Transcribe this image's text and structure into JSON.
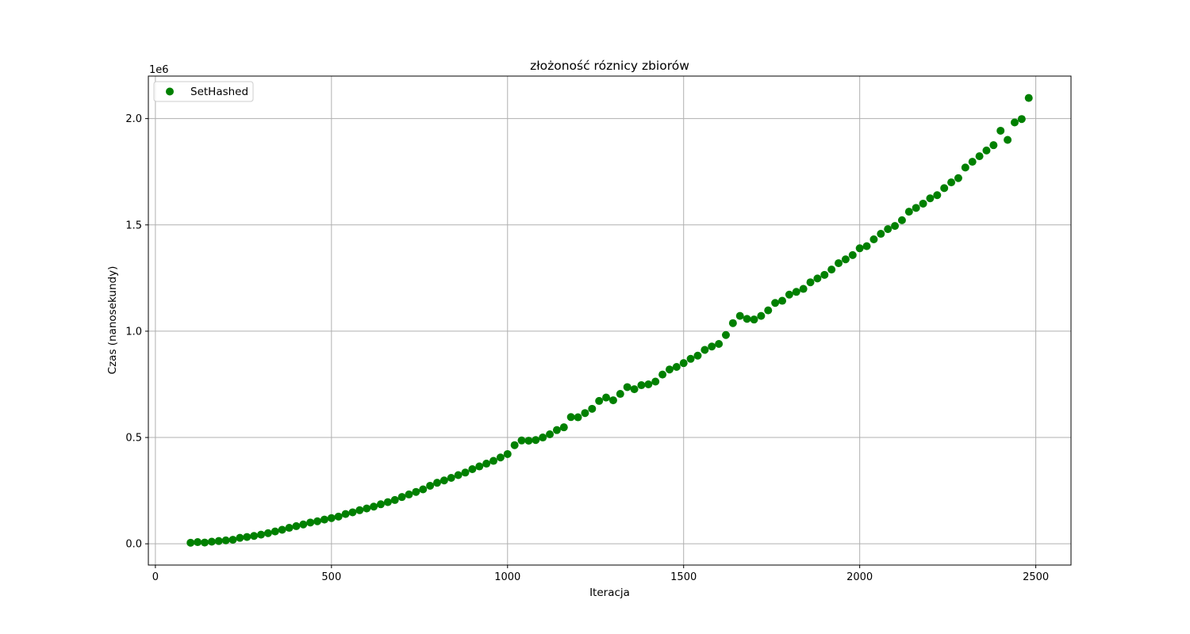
{
  "chart_data": {
    "type": "scatter",
    "title": "złożoność róznicy zbiorów",
    "xlabel": "Iteracja",
    "ylabel": "Czas (nanosekundy)",
    "y_offset_label": "1e6",
    "xlim": [
      -20,
      2600
    ],
    "ylim": [
      -100000,
      2200000
    ],
    "xticks": [
      0,
      500,
      1000,
      1500,
      2000,
      2500
    ],
    "xtick_labels": [
      "0",
      "500",
      "1000",
      "1500",
      "2000",
      "2500"
    ],
    "yticks": [
      0,
      500000,
      1000000,
      1500000,
      2000000
    ],
    "ytick_labels": [
      "0.0",
      "0.5",
      "1.0",
      "1.5",
      "2.0"
    ],
    "grid": true,
    "legend_position": "top-left",
    "series": [
      {
        "name": "SetHashed",
        "color": "#008000",
        "x": [
          100,
          120,
          140,
          160,
          180,
          200,
          220,
          240,
          260,
          280,
          300,
          320,
          340,
          360,
          380,
          400,
          420,
          440,
          460,
          480,
          500,
          520,
          540,
          560,
          580,
          600,
          620,
          640,
          660,
          680,
          700,
          720,
          740,
          760,
          780,
          800,
          820,
          840,
          860,
          880,
          900,
          920,
          940,
          960,
          980,
          1000,
          1020,
          1040,
          1060,
          1080,
          1100,
          1120,
          1140,
          1160,
          1180,
          1200,
          1220,
          1240,
          1260,
          1280,
          1300,
          1320,
          1340,
          1360,
          1380,
          1400,
          1420,
          1440,
          1460,
          1480,
          1500,
          1520,
          1540,
          1560,
          1580,
          1600,
          1620,
          1640,
          1660,
          1680,
          1700,
          1720,
          1740,
          1760,
          1780,
          1800,
          1820,
          1840,
          1860,
          1880,
          1900,
          1920,
          1940,
          1960,
          1980,
          2000,
          2020,
          2040,
          2060,
          2080,
          2100,
          2120,
          2140,
          2160,
          2180,
          2200,
          2220,
          2240,
          2260,
          2280,
          2300,
          2320,
          2340,
          2360,
          2380,
          2400,
          2420,
          2440,
          2460,
          2480
        ],
        "y": [
          5000,
          8000,
          6000,
          10000,
          13000,
          16000,
          19000,
          28000,
          32000,
          37000,
          43000,
          50000,
          58000,
          66000,
          75000,
          83000,
          91000,
          100000,
          106000,
          114000,
          121000,
          128000,
          140000,
          148000,
          158000,
          166000,
          175000,
          186000,
          196000,
          206000,
          220000,
          232000,
          244000,
          256000,
          273000,
          287000,
          298000,
          310000,
          323000,
          335000,
          351000,
          364000,
          377000,
          390000,
          406000,
          422000,
          464000,
          486000,
          485000,
          488000,
          500000,
          515000,
          535000,
          548000,
          596000,
          595000,
          615000,
          635000,
          672000,
          688000,
          675000,
          705000,
          737000,
          727000,
          746000,
          750000,
          763000,
          796000,
          820000,
          832000,
          850000,
          870000,
          885000,
          912000,
          928000,
          940000,
          982000,
          1038000,
          1072000,
          1058000,
          1055000,
          1072000,
          1098000,
          1133000,
          1143000,
          1172000,
          1185000,
          1199000,
          1230000,
          1248000,
          1265000,
          1290000,
          1320000,
          1338000,
          1358000,
          1390000,
          1400000,
          1432000,
          1458000,
          1480000,
          1495000,
          1522000,
          1562000,
          1580000,
          1600000,
          1625000,
          1640000,
          1673000,
          1700000,
          1720000,
          1770000,
          1797000,
          1823000,
          1850000,
          1875000,
          1943000,
          1900000,
          1982000,
          1998000,
          2097000
        ]
      }
    ]
  }
}
